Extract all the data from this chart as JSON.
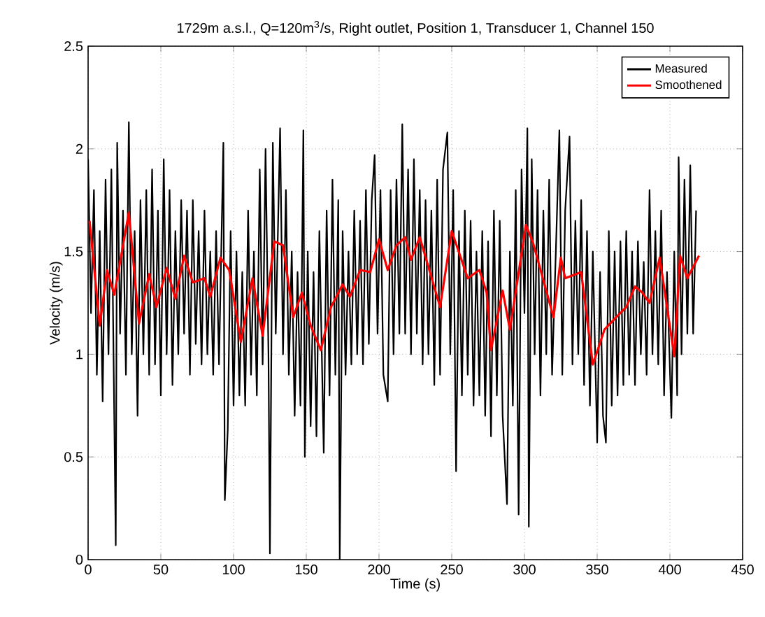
{
  "chart_data": {
    "type": "line",
    "title": "1729m a.s.l., Q=120m$^{3}$/s, Right outlet, Position 1, Transducer 1, Channel 150",
    "xlabel": "Time (s)",
    "ylabel": "Velocity (m/s)",
    "xlim": [
      0,
      450
    ],
    "xticks": [
      0,
      50,
      100,
      150,
      200,
      250,
      300,
      350,
      400,
      450
    ],
    "ylim": [
      0,
      2.5
    ],
    "yticks": [
      0,
      0.5,
      1,
      1.5,
      2,
      2.5
    ],
    "grid": true,
    "legend": "top right",
    "series": [
      {
        "name": "Measured",
        "color": "#000000",
        "x": [
          0,
          2,
          4,
          6,
          8,
          10,
          12,
          14,
          16,
          19,
          20,
          22,
          24,
          26,
          28,
          30,
          32,
          34,
          36,
          38,
          40,
          42,
          44,
          46,
          48,
          50,
          52,
          54,
          56,
          58,
          60,
          62,
          64,
          66,
          68,
          70,
          72,
          74,
          76,
          78,
          80,
          82,
          84,
          86,
          88,
          90,
          93,
          94,
          96,
          98,
          100,
          102,
          104,
          106,
          108,
          110,
          112,
          114,
          116,
          118,
          120,
          122,
          124,
          125,
          127,
          129,
          132,
          134,
          136,
          138,
          140,
          142,
          144,
          146,
          148,
          149,
          151,
          153,
          155,
          157,
          159,
          162,
          164,
          166,
          168,
          170,
          172,
          173,
          175,
          177,
          179,
          181,
          183,
          185,
          187,
          189,
          191,
          193,
          195,
          197,
          199,
          201,
          203,
          206,
          208,
          210,
          212,
          214,
          216,
          218,
          220,
          222,
          224,
          226,
          228,
          230,
          232,
          234,
          236,
          238,
          240,
          242,
          244,
          247,
          249,
          251,
          253,
          255,
          257,
          259,
          261,
          263,
          265,
          267,
          269,
          271,
          273,
          275,
          277,
          279,
          281,
          283,
          285,
          288,
          290,
          292,
          294,
          296,
          298,
          300,
          302,
          303,
          305,
          307,
          309,
          311,
          313,
          315,
          317,
          319,
          322,
          324,
          326,
          328,
          331,
          333,
          335,
          337,
          339,
          341,
          343,
          345,
          347,
          350,
          352,
          354,
          356,
          358,
          360,
          362,
          364,
          366,
          368,
          370,
          372,
          374,
          376,
          378,
          380,
          382,
          384,
          386,
          388,
          390,
          392,
          394,
          396,
          398,
          401,
          403,
          405,
          406,
          408,
          410,
          412,
          414,
          416,
          418
        ],
        "values": [
          1.95,
          1.2,
          1.8,
          0.9,
          1.6,
          0.77,
          1.85,
          1.0,
          1.9,
          0.07,
          2.03,
          1.1,
          1.7,
          0.9,
          2.13,
          1.0,
          1.6,
          0.7,
          1.75,
          1.0,
          1.8,
          0.9,
          1.9,
          0.95,
          1.7,
          0.8,
          1.95,
          1.0,
          1.8,
          0.85,
          1.6,
          1.0,
          1.75,
          1.1,
          1.7,
          0.9,
          1.75,
          1.05,
          1.6,
          0.95,
          1.7,
          1.0,
          1.5,
          0.9,
          1.6,
          0.95,
          2.03,
          0.29,
          0.63,
          1.6,
          0.75,
          1.5,
          0.8,
          1.4,
          0.75,
          1.7,
          0.9,
          1.5,
          0.8,
          1.9,
          0.95,
          2.0,
          1.0,
          0.03,
          2.03,
          1.1,
          2.1,
          1.0,
          1.8,
          0.9,
          1.5,
          0.7,
          1.4,
          0.75,
          2.09,
          0.5,
          1.5,
          0.65,
          1.4,
          0.6,
          1.6,
          0.52,
          1.7,
          0.8,
          1.85,
          0.9,
          1.75,
          0.0,
          1.6,
          0.9,
          1.5,
          0.95,
          1.7,
          1.0,
          1.65,
          0.95,
          1.8,
          1.05,
          1.75,
          1.97,
          1.1,
          1.8,
          0.9,
          0.77,
          1.8,
          1.0,
          1.85,
          1.1,
          2.12,
          1.1,
          1.9,
          1.0,
          1.95,
          1.1,
          1.8,
          0.95,
          1.75,
          1.0,
          1.7,
          0.85,
          1.85,
          0.9,
          1.9,
          2.08,
          1.0,
          1.8,
          0.43,
          1.6,
          0.8,
          1.7,
          0.9,
          1.65,
          0.75,
          1.5,
          0.8,
          1.6,
          0.7,
          1.55,
          0.6,
          1.7,
          0.8,
          1.65,
          0.7,
          0.27,
          1.5,
          0.75,
          1.8,
          0.22,
          1.9,
          1.2,
          2.1,
          0.16,
          1.95,
          1.0,
          1.8,
          0.8,
          1.7,
          1.0,
          1.85,
          0.9,
          1.6,
          2.09,
          0.9,
          1.7,
          2.06,
          0.95,
          1.65,
          1.0,
          1.75,
          0.85,
          1.6,
          0.75,
          1.5,
          0.57,
          1.4,
          0.7,
          0.57,
          1.6,
          0.75,
          1.5,
          0.8,
          1.55,
          0.85,
          1.6,
          0.9,
          1.5,
          0.85,
          1.55,
          1.0,
          1.45,
          0.9,
          1.8,
          1.0,
          1.6,
          0.95,
          1.7,
          0.8,
          1.4,
          0.69,
          1.5,
          0.8,
          1.96,
          1.0,
          1.85,
          1.1,
          1.92,
          1.1,
          1.7
        ]
      },
      {
        "name": "Smoothened",
        "color": "#ff0000",
        "x": [
          1,
          8,
          13,
          18,
          28,
          35,
          42,
          47,
          54,
          60,
          66,
          72,
          80,
          84,
          91,
          97,
          105,
          113,
          120,
          128,
          134,
          141,
          147,
          153,
          160,
          167,
          175,
          180,
          187,
          194,
          200,
          206,
          212,
          218,
          222,
          228,
          242,
          250,
          261,
          269,
          274,
          277,
          285,
          290,
          301,
          306,
          320,
          325,
          328,
          339,
          347,
          355,
          363,
          370,
          376,
          381,
          386,
          393,
          403,
          407,
          412,
          420
        ],
        "values": [
          1.65,
          1.14,
          1.41,
          1.29,
          1.69,
          1.15,
          1.39,
          1.23,
          1.42,
          1.27,
          1.48,
          1.35,
          1.37,
          1.28,
          1.47,
          1.41,
          1.06,
          1.37,
          1.09,
          1.55,
          1.53,
          1.18,
          1.3,
          1.14,
          1.02,
          1.23,
          1.34,
          1.28,
          1.41,
          1.4,
          1.56,
          1.41,
          1.53,
          1.57,
          1.46,
          1.57,
          1.23,
          1.6,
          1.37,
          1.41,
          1.3,
          1.02,
          1.31,
          1.12,
          1.63,
          1.54,
          1.18,
          1.47,
          1.37,
          1.4,
          0.95,
          1.12,
          1.18,
          1.23,
          1.33,
          1.3,
          1.25,
          1.47,
          0.99,
          1.48,
          1.37,
          1.48
        ]
      }
    ]
  }
}
